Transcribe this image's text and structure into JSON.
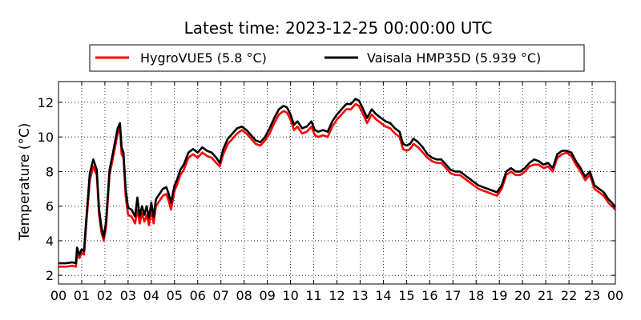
{
  "chart_data": {
    "type": "line",
    "title": "Latest time: 2023-12-25 00:00:00 UTC",
    "xlabel": "",
    "ylabel": "Temperature (°C)",
    "xlim": [
      0,
      24
    ],
    "ylim": [
      1.5,
      13.2
    ],
    "grid": true,
    "legend_position": "top",
    "x_ticks": [
      0,
      1,
      2,
      3,
      4,
      5,
      6,
      7,
      8,
      9,
      10,
      11,
      12,
      13,
      14,
      15,
      16,
      17,
      18,
      19,
      20,
      21,
      22,
      23,
      24
    ],
    "x_tick_labels": [
      "00",
      "01",
      "02",
      "03",
      "04",
      "05",
      "06",
      "07",
      "08",
      "09",
      "10",
      "11",
      "12",
      "13",
      "14",
      "15",
      "16",
      "17",
      "18",
      "19",
      "20",
      "21",
      "22",
      "23",
      "00"
    ],
    "y_ticks": [
      2,
      4,
      6,
      8,
      10,
      12
    ],
    "y_tick_labels": [
      "2",
      "4",
      "6",
      "8",
      "10",
      "12"
    ],
    "series": [
      {
        "name": "HygroVUE5 (5.8 °C)",
        "color": "#ff0000",
        "points": [
          [
            0.0,
            2.5
          ],
          [
            0.3,
            2.5
          ],
          [
            0.6,
            2.55
          ],
          [
            0.75,
            2.5
          ],
          [
            0.8,
            3.2
          ],
          [
            0.9,
            3.0
          ],
          [
            1.0,
            3.3
          ],
          [
            1.1,
            3.2
          ],
          [
            1.2,
            5.0
          ],
          [
            1.35,
            7.5
          ],
          [
            1.5,
            8.3
          ],
          [
            1.65,
            7.8
          ],
          [
            1.75,
            5.5
          ],
          [
            1.85,
            4.5
          ],
          [
            1.95,
            4.0
          ],
          [
            2.05,
            4.8
          ],
          [
            2.2,
            7.8
          ],
          [
            2.35,
            8.8
          ],
          [
            2.45,
            9.5
          ],
          [
            2.55,
            10.2
          ],
          [
            2.65,
            10.5
          ],
          [
            2.72,
            9.0
          ],
          [
            2.8,
            8.8
          ],
          [
            2.9,
            6.5
          ],
          [
            3.0,
            5.5
          ],
          [
            3.15,
            5.4
          ],
          [
            3.3,
            5.0
          ],
          [
            3.4,
            5.8
          ],
          [
            3.5,
            5.0
          ],
          [
            3.6,
            5.6
          ],
          [
            3.7,
            5.1
          ],
          [
            3.8,
            5.5
          ],
          [
            3.9,
            4.9
          ],
          [
            4.0,
            5.8
          ],
          [
            4.1,
            5.0
          ],
          [
            4.2,
            6.0
          ],
          [
            4.35,
            6.3
          ],
          [
            4.5,
            6.6
          ],
          [
            4.65,
            6.7
          ],
          [
            4.75,
            6.3
          ],
          [
            4.85,
            5.8
          ],
          [
            5.0,
            6.9
          ],
          [
            5.1,
            7.2
          ],
          [
            5.25,
            7.8
          ],
          [
            5.4,
            8.1
          ],
          [
            5.6,
            8.8
          ],
          [
            5.8,
            9.0
          ],
          [
            6.0,
            8.8
          ],
          [
            6.2,
            9.1
          ],
          [
            6.4,
            8.9
          ],
          [
            6.6,
            8.8
          ],
          [
            6.8,
            8.5
          ],
          [
            6.95,
            8.3
          ],
          [
            7.1,
            9.0
          ],
          [
            7.3,
            9.6
          ],
          [
            7.5,
            9.9
          ],
          [
            7.7,
            10.2
          ],
          [
            7.9,
            10.4
          ],
          [
            8.1,
            10.2
          ],
          [
            8.3,
            9.9
          ],
          [
            8.5,
            9.6
          ],
          [
            8.7,
            9.5
          ],
          [
            8.9,
            9.8
          ],
          [
            9.1,
            10.2
          ],
          [
            9.3,
            10.8
          ],
          [
            9.5,
            11.3
          ],
          [
            9.7,
            11.5
          ],
          [
            9.85,
            11.4
          ],
          [
            10.0,
            11.0
          ],
          [
            10.15,
            10.4
          ],
          [
            10.3,
            10.6
          ],
          [
            10.5,
            10.2
          ],
          [
            10.7,
            10.3
          ],
          [
            10.9,
            10.6
          ],
          [
            11.05,
            10.1
          ],
          [
            11.2,
            10.0
          ],
          [
            11.4,
            10.1
          ],
          [
            11.6,
            10.0
          ],
          [
            11.8,
            10.6
          ],
          [
            12.0,
            11.0
          ],
          [
            12.2,
            11.3
          ],
          [
            12.4,
            11.6
          ],
          [
            12.6,
            11.6
          ],
          [
            12.8,
            11.9
          ],
          [
            12.95,
            11.8
          ],
          [
            13.1,
            11.4
          ],
          [
            13.3,
            10.8
          ],
          [
            13.5,
            11.3
          ],
          [
            13.7,
            11.0
          ],
          [
            13.9,
            10.8
          ],
          [
            14.1,
            10.6
          ],
          [
            14.3,
            10.5
          ],
          [
            14.5,
            10.2
          ],
          [
            14.7,
            10.0
          ],
          [
            14.85,
            9.3
          ],
          [
            15.0,
            9.2
          ],
          [
            15.15,
            9.3
          ],
          [
            15.3,
            9.6
          ],
          [
            15.5,
            9.4
          ],
          [
            15.7,
            9.1
          ],
          [
            15.9,
            8.8
          ],
          [
            16.1,
            8.6
          ],
          [
            16.3,
            8.5
          ],
          [
            16.5,
            8.5
          ],
          [
            16.7,
            8.2
          ],
          [
            16.9,
            7.9
          ],
          [
            17.1,
            7.8
          ],
          [
            17.3,
            7.8
          ],
          [
            17.5,
            7.6
          ],
          [
            17.7,
            7.4
          ],
          [
            17.9,
            7.2
          ],
          [
            18.1,
            7.0
          ],
          [
            18.3,
            6.9
          ],
          [
            18.5,
            6.8
          ],
          [
            18.7,
            6.7
          ],
          [
            18.9,
            6.6
          ],
          [
            19.1,
            7.0
          ],
          [
            19.3,
            7.8
          ],
          [
            19.5,
            8.0
          ],
          [
            19.7,
            7.8
          ],
          [
            19.9,
            7.8
          ],
          [
            20.1,
            8.0
          ],
          [
            20.3,
            8.3
          ],
          [
            20.5,
            8.4
          ],
          [
            20.7,
            8.4
          ],
          [
            20.9,
            8.2
          ],
          [
            21.1,
            8.3
          ],
          [
            21.3,
            8.0
          ],
          [
            21.5,
            8.8
          ],
          [
            21.7,
            9.0
          ],
          [
            21.9,
            9.1
          ],
          [
            22.1,
            8.9
          ],
          [
            22.3,
            8.4
          ],
          [
            22.5,
            8.0
          ],
          [
            22.7,
            7.5
          ],
          [
            22.9,
            7.8
          ],
          [
            23.1,
            7.0
          ],
          [
            23.3,
            6.8
          ],
          [
            23.5,
            6.6
          ],
          [
            23.7,
            6.2
          ],
          [
            23.85,
            6.0
          ],
          [
            24.0,
            5.8
          ]
        ]
      },
      {
        "name": "Vaisala HMP35D (5.939 °C)",
        "color": "#000000",
        "points": [
          [
            0.0,
            2.7
          ],
          [
            0.3,
            2.7
          ],
          [
            0.6,
            2.75
          ],
          [
            0.75,
            2.7
          ],
          [
            0.8,
            3.6
          ],
          [
            0.9,
            3.2
          ],
          [
            1.0,
            3.5
          ],
          [
            1.1,
            3.4
          ],
          [
            1.2,
            5.3
          ],
          [
            1.35,
            7.9
          ],
          [
            1.5,
            8.7
          ],
          [
            1.65,
            8.1
          ],
          [
            1.75,
            5.8
          ],
          [
            1.85,
            4.8
          ],
          [
            1.95,
            4.2
          ],
          [
            2.05,
            5.1
          ],
          [
            2.2,
            8.1
          ],
          [
            2.35,
            9.1
          ],
          [
            2.45,
            9.8
          ],
          [
            2.55,
            10.5
          ],
          [
            2.65,
            10.8
          ],
          [
            2.72,
            9.4
          ],
          [
            2.8,
            9.1
          ],
          [
            2.9,
            6.9
          ],
          [
            3.0,
            5.9
          ],
          [
            3.15,
            5.8
          ],
          [
            3.3,
            5.4
          ],
          [
            3.4,
            6.5
          ],
          [
            3.5,
            5.4
          ],
          [
            3.6,
            6.0
          ],
          [
            3.7,
            5.5
          ],
          [
            3.8,
            6.0
          ],
          [
            3.9,
            5.3
          ],
          [
            4.0,
            6.2
          ],
          [
            4.1,
            5.4
          ],
          [
            4.2,
            6.4
          ],
          [
            4.35,
            6.7
          ],
          [
            4.5,
            7.0
          ],
          [
            4.65,
            7.1
          ],
          [
            4.75,
            6.7
          ],
          [
            4.85,
            6.2
          ],
          [
            5.0,
            7.2
          ],
          [
            5.1,
            7.5
          ],
          [
            5.25,
            8.1
          ],
          [
            5.4,
            8.4
          ],
          [
            5.6,
            9.1
          ],
          [
            5.8,
            9.3
          ],
          [
            6.0,
            9.1
          ],
          [
            6.2,
            9.4
          ],
          [
            6.4,
            9.2
          ],
          [
            6.6,
            9.1
          ],
          [
            6.8,
            8.8
          ],
          [
            6.95,
            8.5
          ],
          [
            7.1,
            9.3
          ],
          [
            7.3,
            9.9
          ],
          [
            7.5,
            10.2
          ],
          [
            7.7,
            10.5
          ],
          [
            7.9,
            10.6
          ],
          [
            8.1,
            10.4
          ],
          [
            8.3,
            10.1
          ],
          [
            8.5,
            9.8
          ],
          [
            8.7,
            9.7
          ],
          [
            8.9,
            10.0
          ],
          [
            9.1,
            10.5
          ],
          [
            9.3,
            11.1
          ],
          [
            9.5,
            11.6
          ],
          [
            9.7,
            11.8
          ],
          [
            9.85,
            11.7
          ],
          [
            10.0,
            11.3
          ],
          [
            10.15,
            10.7
          ],
          [
            10.3,
            10.9
          ],
          [
            10.5,
            10.5
          ],
          [
            10.7,
            10.6
          ],
          [
            10.9,
            10.9
          ],
          [
            11.05,
            10.4
          ],
          [
            11.2,
            10.3
          ],
          [
            11.4,
            10.4
          ],
          [
            11.6,
            10.3
          ],
          [
            11.8,
            10.9
          ],
          [
            12.0,
            11.3
          ],
          [
            12.2,
            11.6
          ],
          [
            12.4,
            11.9
          ],
          [
            12.6,
            11.9
          ],
          [
            12.8,
            12.2
          ],
          [
            12.95,
            12.1
          ],
          [
            13.1,
            11.7
          ],
          [
            13.3,
            11.1
          ],
          [
            13.5,
            11.6
          ],
          [
            13.7,
            11.3
          ],
          [
            13.9,
            11.1
          ],
          [
            14.1,
            10.9
          ],
          [
            14.3,
            10.8
          ],
          [
            14.5,
            10.5
          ],
          [
            14.7,
            10.3
          ],
          [
            14.85,
            9.6
          ],
          [
            15.0,
            9.5
          ],
          [
            15.15,
            9.6
          ],
          [
            15.3,
            9.9
          ],
          [
            15.5,
            9.7
          ],
          [
            15.7,
            9.4
          ],
          [
            15.9,
            9.0
          ],
          [
            16.1,
            8.8
          ],
          [
            16.3,
            8.7
          ],
          [
            16.5,
            8.7
          ],
          [
            16.7,
            8.4
          ],
          [
            16.9,
            8.1
          ],
          [
            17.1,
            8.0
          ],
          [
            17.3,
            8.0
          ],
          [
            17.5,
            7.8
          ],
          [
            17.7,
            7.6
          ],
          [
            17.9,
            7.4
          ],
          [
            18.1,
            7.2
          ],
          [
            18.3,
            7.1
          ],
          [
            18.5,
            7.0
          ],
          [
            18.7,
            6.9
          ],
          [
            18.9,
            6.8
          ],
          [
            19.1,
            7.2
          ],
          [
            19.3,
            8.0
          ],
          [
            19.5,
            8.2
          ],
          [
            19.7,
            8.0
          ],
          [
            19.9,
            8.0
          ],
          [
            20.1,
            8.2
          ],
          [
            20.3,
            8.5
          ],
          [
            20.5,
            8.7
          ],
          [
            20.7,
            8.6
          ],
          [
            20.9,
            8.4
          ],
          [
            21.1,
            8.5
          ],
          [
            21.3,
            8.2
          ],
          [
            21.5,
            9.0
          ],
          [
            21.7,
            9.2
          ],
          [
            21.9,
            9.2
          ],
          [
            22.1,
            9.1
          ],
          [
            22.3,
            8.6
          ],
          [
            22.5,
            8.2
          ],
          [
            22.7,
            7.7
          ],
          [
            22.9,
            8.0
          ],
          [
            23.1,
            7.2
          ],
          [
            23.3,
            7.0
          ],
          [
            23.5,
            6.8
          ],
          [
            23.7,
            6.4
          ],
          [
            23.85,
            6.2
          ],
          [
            24.0,
            5.939
          ]
        ]
      }
    ]
  }
}
